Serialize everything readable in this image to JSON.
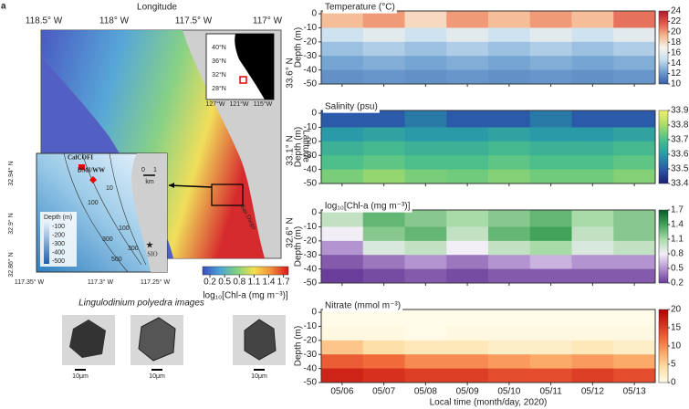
{
  "figure_label": "a",
  "map_panel": {
    "x_title": "Longitude",
    "y_title": "Latitude",
    "xticks": [
      "118.5° W",
      "118° W",
      "117.5° W",
      "117° W"
    ],
    "yticks": [
      "33.6° N",
      "33.1° N",
      "32.6° N"
    ],
    "place": "San Diego",
    "colorbar": {
      "label": "log₁₀[Chl-a (mg m⁻³)]",
      "ticks": [
        0.2,
        0.5,
        0.8,
        1.1,
        1.4,
        1.7
      ],
      "lim": [
        0.05,
        1.8
      ],
      "colormap": [
        "#3b4cc0",
        "#4aa3d8",
        "#7fd17f",
        "#f4e04d",
        "#f28c38",
        "#d7191c"
      ]
    }
  },
  "overview_map": {
    "lat_labels": [
      "40°N",
      "36°N",
      "32°N",
      "28°N"
    ],
    "lon_labels": [
      "127°W",
      "121°W",
      "115°W"
    ]
  },
  "zoom_map": {
    "stations": [
      "CalCOFI",
      "DMI/WW",
      "SIO"
    ],
    "scale": [
      "0",
      "1",
      "km"
    ],
    "legend_title": "Depth (m)",
    "legend_ticks": [
      -100,
      -200,
      -300,
      -400,
      -500
    ],
    "contour_labels": [
      "10",
      "100",
      "100",
      "300",
      "300",
      "500"
    ],
    "yticks": [
      "32.94° N",
      "32.9° N",
      "32.86° N"
    ],
    "xticks": [
      "117.35° W",
      "117.3° W",
      "117.25° W"
    ]
  },
  "images": {
    "title": "Lingulodinium polyedra images",
    "scale_labels": [
      "10μm",
      "10μm",
      "10μm"
    ]
  },
  "chart_data": [
    {
      "type": "heatmap",
      "title": "Temperature (°C)",
      "y_label": "Depth (m)",
      "y": [
        -5,
        -15,
        -25,
        -35,
        -45
      ],
      "z": [
        [
          19,
          20,
          18,
          20,
          19,
          20,
          19,
          21
        ],
        [
          15,
          16,
          15,
          16,
          15,
          16,
          15,
          16
        ],
        [
          13.5,
          14,
          13.5,
          14,
          13.5,
          14,
          13.5,
          14
        ],
        [
          12.5,
          12.8,
          12.5,
          12.8,
          12.5,
          12.8,
          12.5,
          12.8
        ],
        [
          11.8,
          12,
          11.8,
          12,
          11.8,
          12,
          11.8,
          12
        ]
      ],
      "ylim": [
        -50,
        2
      ],
      "yticks": [
        0,
        -10,
        -20,
        -30,
        -40,
        -50
      ],
      "clim": [
        10,
        24
      ],
      "cticks": [
        10,
        12,
        14,
        16,
        18,
        20,
        22,
        24
      ],
      "colormap": [
        "#3b5ba8",
        "#6fa0d0",
        "#c8dff0",
        "#f7f3ea",
        "#f6b48b",
        "#e0584a",
        "#b2182b"
      ]
    },
    {
      "type": "heatmap",
      "title": "Salinity (psu)",
      "y_label": "Depth (m)",
      "y": [
        -5,
        -15,
        -25,
        -35,
        -45
      ],
      "z": [
        [
          33.5,
          33.5,
          33.55,
          33.5,
          33.5,
          33.55,
          33.5,
          33.5
        ],
        [
          33.6,
          33.62,
          33.6,
          33.6,
          33.62,
          33.6,
          33.6,
          33.62
        ],
        [
          33.66,
          33.68,
          33.66,
          33.66,
          33.68,
          33.66,
          33.66,
          33.68
        ],
        [
          33.7,
          33.72,
          33.7,
          33.7,
          33.72,
          33.7,
          33.7,
          33.72
        ],
        [
          33.75,
          33.78,
          33.75,
          33.74,
          33.76,
          33.74,
          33.74,
          33.76
        ]
      ],
      "ylim": [
        -50,
        2
      ],
      "yticks": [
        0,
        -10,
        -20,
        -30,
        -40,
        -50
      ],
      "clim": [
        33.4,
        33.9
      ],
      "cticks": [
        33.4,
        33.5,
        33.6,
        33.7,
        33.8,
        33.9
      ],
      "colormap": [
        "#1d1f73",
        "#2a5aa8",
        "#2a9aa8",
        "#4cbf8a",
        "#a8dc6a",
        "#f1f06a"
      ]
    },
    {
      "type": "heatmap",
      "title": "log₁₀[Chl-a (mg m⁻³)]",
      "y_label": "Depth (m)",
      "y": [
        -5,
        -15,
        -25,
        -35,
        -45
      ],
      "z": [
        [
          1.0,
          1.3,
          1.2,
          1.1,
          1.2,
          1.3,
          1.1,
          1.2
        ],
        [
          0.8,
          1.2,
          1.3,
          1.0,
          1.3,
          1.4,
          1.0,
          1.2
        ],
        [
          0.5,
          0.9,
          1.0,
          0.8,
          1.0,
          1.1,
          0.9,
          1.0
        ],
        [
          0.3,
          0.4,
          0.5,
          0.4,
          0.5,
          0.6,
          0.5,
          0.5
        ],
        [
          0.2,
          0.25,
          0.3,
          0.25,
          0.3,
          0.3,
          0.3,
          0.3
        ]
      ],
      "ylim": [
        -50,
        2
      ],
      "yticks": [
        0,
        -10,
        -20,
        -30,
        -40,
        -50
      ],
      "clim": [
        0.2,
        1.7
      ],
      "cticks": [
        0.2,
        0.5,
        0.8,
        1.1,
        1.4,
        1.7
      ],
      "colormap": [
        "#6a3d9a",
        "#b494d0",
        "#f2eef6",
        "#a8dba8",
        "#41a35a",
        "#0a5a2a"
      ]
    },
    {
      "type": "heatmap",
      "title": "Nitrate (mmol m⁻³)",
      "y_label": "Depth (m)",
      "x_label": "Local time (month/day, 2020)",
      "categories": [
        "05/06",
        "05/07",
        "05/08",
        "05/09",
        "05/10",
        "05/11",
        "05/12",
        "05/13"
      ],
      "y": [
        -5,
        -15,
        -25,
        -35,
        -45
      ],
      "z": [
        [
          0,
          0,
          0,
          0,
          0,
          0,
          0,
          0
        ],
        [
          0.5,
          0.5,
          0,
          0.5,
          0.5,
          0.5,
          0.5,
          0.5
        ],
        [
          6,
          4,
          3,
          3,
          2,
          2,
          3,
          2
        ],
        [
          13,
          12,
          10,
          10,
          9,
          8,
          9,
          8
        ],
        [
          17,
          16,
          15,
          15,
          14,
          14,
          15,
          14
        ]
      ],
      "ylim": [
        -50,
        2
      ],
      "yticks": [
        0,
        -10,
        -20,
        -30,
        -40,
        -50
      ],
      "clim": [
        0,
        20
      ],
      "cticks": [
        0,
        5,
        10,
        15,
        20
      ],
      "colormap": [
        "#fffbe8",
        "#fde0a8",
        "#fcaa6a",
        "#f06a3a",
        "#d7301f",
        "#b30000"
      ]
    }
  ]
}
